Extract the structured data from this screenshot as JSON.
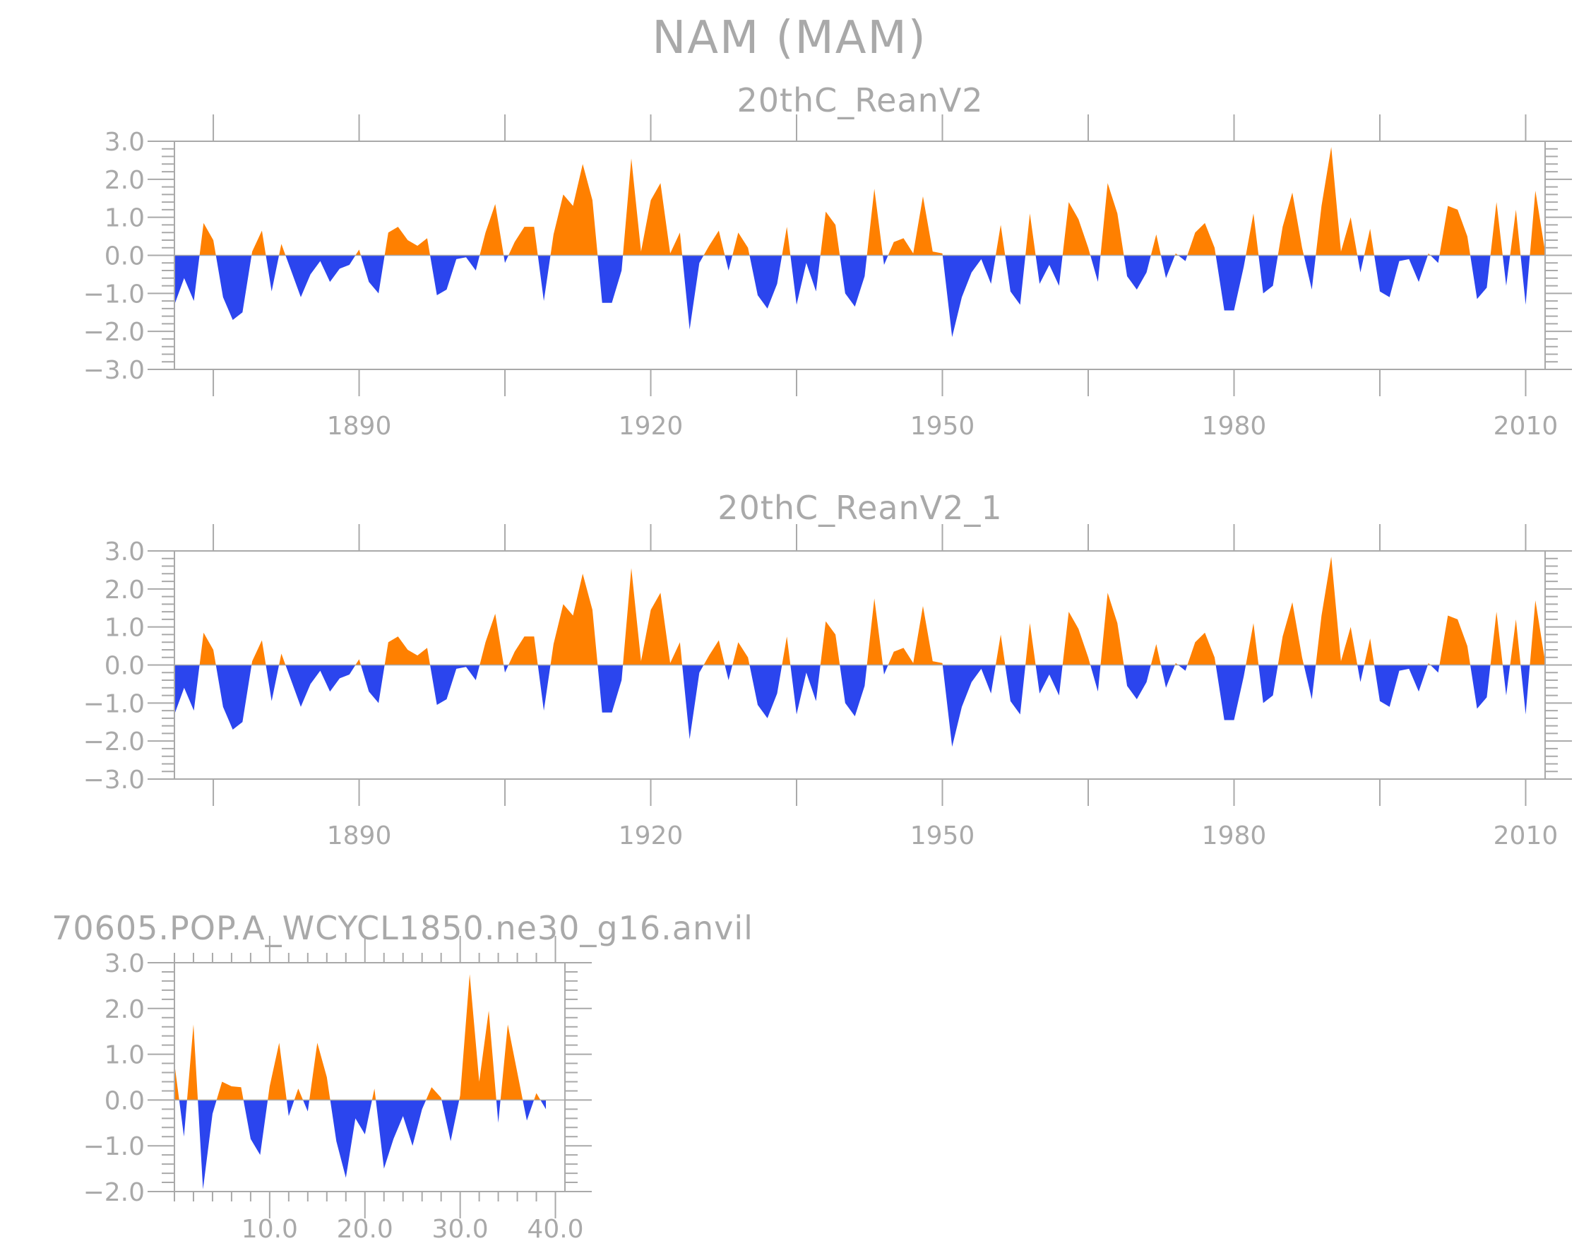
{
  "figure": {
    "title": "NAM (MAM)",
    "colors": {
      "positive": "#ff8000",
      "negative": "#2b45ee",
      "axis": "#a9a9a9",
      "background": "#ffffff"
    }
  },
  "chart_data": [
    {
      "type": "area",
      "title": "20thC_ReanV2",
      "xlabel": "",
      "ylabel": "",
      "xlim": [
        1871,
        2012
      ],
      "ylim": [
        -3,
        3
      ],
      "x_ticks": [
        1890,
        1920,
        1950,
        1980,
        2010
      ],
      "x_tick_labels": [
        "1890",
        "1920",
        "1950",
        "1980",
        "2010"
      ],
      "y_ticks": [
        -3,
        -2,
        -1,
        0,
        1,
        2,
        3
      ],
      "y_tick_labels": [
        "-3.0",
        "-2.0",
        "-1.0",
        "0.0",
        "1.0",
        "2.0",
        "3.0"
      ],
      "x_start": 1871,
      "x_step": 1,
      "fill_above_zero": "positive",
      "fill_below_zero": "negative",
      "values": [
        -1.3,
        -0.6,
        -1.2,
        0.85,
        0.4,
        -1.1,
        -1.7,
        -1.5,
        0.1,
        0.65,
        -0.95,
        0.3,
        -0.4,
        -1.1,
        -0.5,
        -0.15,
        -0.7,
        -0.35,
        -0.25,
        0.15,
        -0.7,
        -1.0,
        0.6,
        0.75,
        0.4,
        0.25,
        0.45,
        -1.05,
        -0.9,
        -0.1,
        -0.05,
        -0.4,
        0.6,
        1.35,
        -0.2,
        0.35,
        0.75,
        0.75,
        -1.2,
        0.55,
        1.6,
        1.3,
        2.4,
        1.45,
        -1.25,
        -1.25,
        -0.4,
        2.55,
        0.1,
        1.45,
        1.9,
        0.05,
        0.6,
        -1.95,
        -0.2,
        0.25,
        0.65,
        -0.4,
        0.6,
        0.2,
        -1.05,
        -1.4,
        -0.75,
        0.75,
        -1.3,
        -0.2,
        -0.95,
        1.15,
        0.8,
        -1.0,
        -1.35,
        -0.55,
        1.75,
        -0.25,
        0.35,
        0.45,
        0.05,
        1.55,
        0.1,
        0.05,
        -2.15,
        -1.1,
        -0.45,
        -0.1,
        -0.75,
        0.8,
        -0.95,
        -1.3,
        1.1,
        -0.75,
        -0.25,
        -0.8,
        1.4,
        0.95,
        0.2,
        -0.7,
        1.9,
        1.1,
        -0.55,
        -0.9,
        -0.45,
        0.55,
        -0.6,
        0.05,
        -0.15,
        0.6,
        0.85,
        0.2,
        -1.45,
        -1.45,
        -0.3,
        1.1,
        -1.0,
        -0.8,
        0.75,
        1.65,
        0.2,
        -0.9,
        1.3,
        2.85,
        0.1,
        1.0,
        -0.45,
        0.7,
        -0.95,
        -1.1,
        -0.15,
        -0.1,
        -0.7,
        0.05,
        -0.2,
        1.3,
        1.2,
        0.5,
        -1.15,
        -0.85,
        1.4,
        -0.8,
        1.2,
        -1.3,
        1.7,
        0.1
      ]
    },
    {
      "type": "area",
      "title": "20thC_ReanV2_1",
      "xlabel": "",
      "ylabel": "",
      "xlim": [
        1871,
        2012
      ],
      "ylim": [
        -3,
        3
      ],
      "x_ticks": [
        1890,
        1920,
        1950,
        1980,
        2010
      ],
      "x_tick_labels": [
        "1890",
        "1920",
        "1950",
        "1980",
        "2010"
      ],
      "y_ticks": [
        -3,
        -2,
        -1,
        0,
        1,
        2,
        3
      ],
      "y_tick_labels": [
        "-3.0",
        "-2.0",
        "-1.0",
        "0.0",
        "1.0",
        "2.0",
        "3.0"
      ],
      "x_start": 1871,
      "x_step": 1,
      "fill_above_zero": "positive",
      "fill_below_zero": "negative",
      "values": [
        -1.3,
        -0.6,
        -1.2,
        0.85,
        0.4,
        -1.1,
        -1.7,
        -1.5,
        0.1,
        0.65,
        -0.95,
        0.3,
        -0.4,
        -1.1,
        -0.5,
        -0.15,
        -0.7,
        -0.35,
        -0.25,
        0.15,
        -0.7,
        -1.0,
        0.6,
        0.75,
        0.4,
        0.25,
        0.45,
        -1.05,
        -0.9,
        -0.1,
        -0.05,
        -0.4,
        0.6,
        1.35,
        -0.2,
        0.35,
        0.75,
        0.75,
        -1.2,
        0.55,
        1.6,
        1.3,
        2.4,
        1.45,
        -1.25,
        -1.25,
        -0.4,
        2.55,
        0.1,
        1.45,
        1.9,
        0.05,
        0.6,
        -1.95,
        -0.2,
        0.25,
        0.65,
        -0.4,
        0.6,
        0.2,
        -1.05,
        -1.4,
        -0.75,
        0.75,
        -1.3,
        -0.2,
        -0.95,
        1.15,
        0.8,
        -1.0,
        -1.35,
        -0.55,
        1.75,
        -0.25,
        0.35,
        0.45,
        0.05,
        1.55,
        0.1,
        0.05,
        -2.15,
        -1.1,
        -0.45,
        -0.1,
        -0.75,
        0.8,
        -0.95,
        -1.3,
        1.1,
        -0.75,
        -0.25,
        -0.8,
        1.4,
        0.95,
        0.2,
        -0.7,
        1.9,
        1.1,
        -0.55,
        -0.9,
        -0.45,
        0.55,
        -0.6,
        0.05,
        -0.15,
        0.6,
        0.85,
        0.2,
        -1.45,
        -1.45,
        -0.3,
        1.1,
        -1.0,
        -0.8,
        0.75,
        1.65,
        0.2,
        -0.9,
        1.3,
        2.85,
        0.1,
        1.0,
        -0.45,
        0.7,
        -0.95,
        -1.1,
        -0.15,
        -0.1,
        -0.7,
        0.05,
        -0.2,
        1.3,
        1.2,
        0.5,
        -1.15,
        -0.85,
        1.4,
        -0.8,
        1.2,
        -1.3,
        1.7,
        0.1
      ]
    },
    {
      "type": "area",
      "title": "70605.POP.A_WCYCL1850.ne30_g16.anvil",
      "xlabel": "",
      "ylabel": "",
      "xlim": [
        0,
        41
      ],
      "ylim": [
        -2,
        3
      ],
      "x_ticks": [
        10,
        20,
        30,
        40
      ],
      "x_tick_labels": [
        "10.0",
        "20.0",
        "30.0",
        "40.0"
      ],
      "y_ticks": [
        -2,
        -1,
        0,
        1,
        2,
        3
      ],
      "y_tick_labels": [
        "-2.0",
        "-1.0",
        "0.0",
        "1.0",
        "2.0",
        "3.0"
      ],
      "x_start": 0,
      "x_step": 1,
      "fill_above_zero": "positive",
      "fill_below_zero": "negative",
      "values": [
        0.8,
        -0.8,
        1.65,
        -1.95,
        -0.3,
        0.4,
        0.3,
        0.28,
        -0.85,
        -1.2,
        0.3,
        1.25,
        -0.35,
        0.25,
        -0.25,
        1.25,
        0.5,
        -0.9,
        -1.7,
        -0.4,
        -0.75,
        0.25,
        -1.5,
        -0.85,
        -0.35,
        -1.0,
        -0.2,
        0.28,
        0.05,
        -0.9,
        0.1,
        2.75,
        0.4,
        1.95,
        -0.5,
        1.65,
        0.6,
        -0.45,
        0.15,
        -0.2
      ]
    }
  ]
}
